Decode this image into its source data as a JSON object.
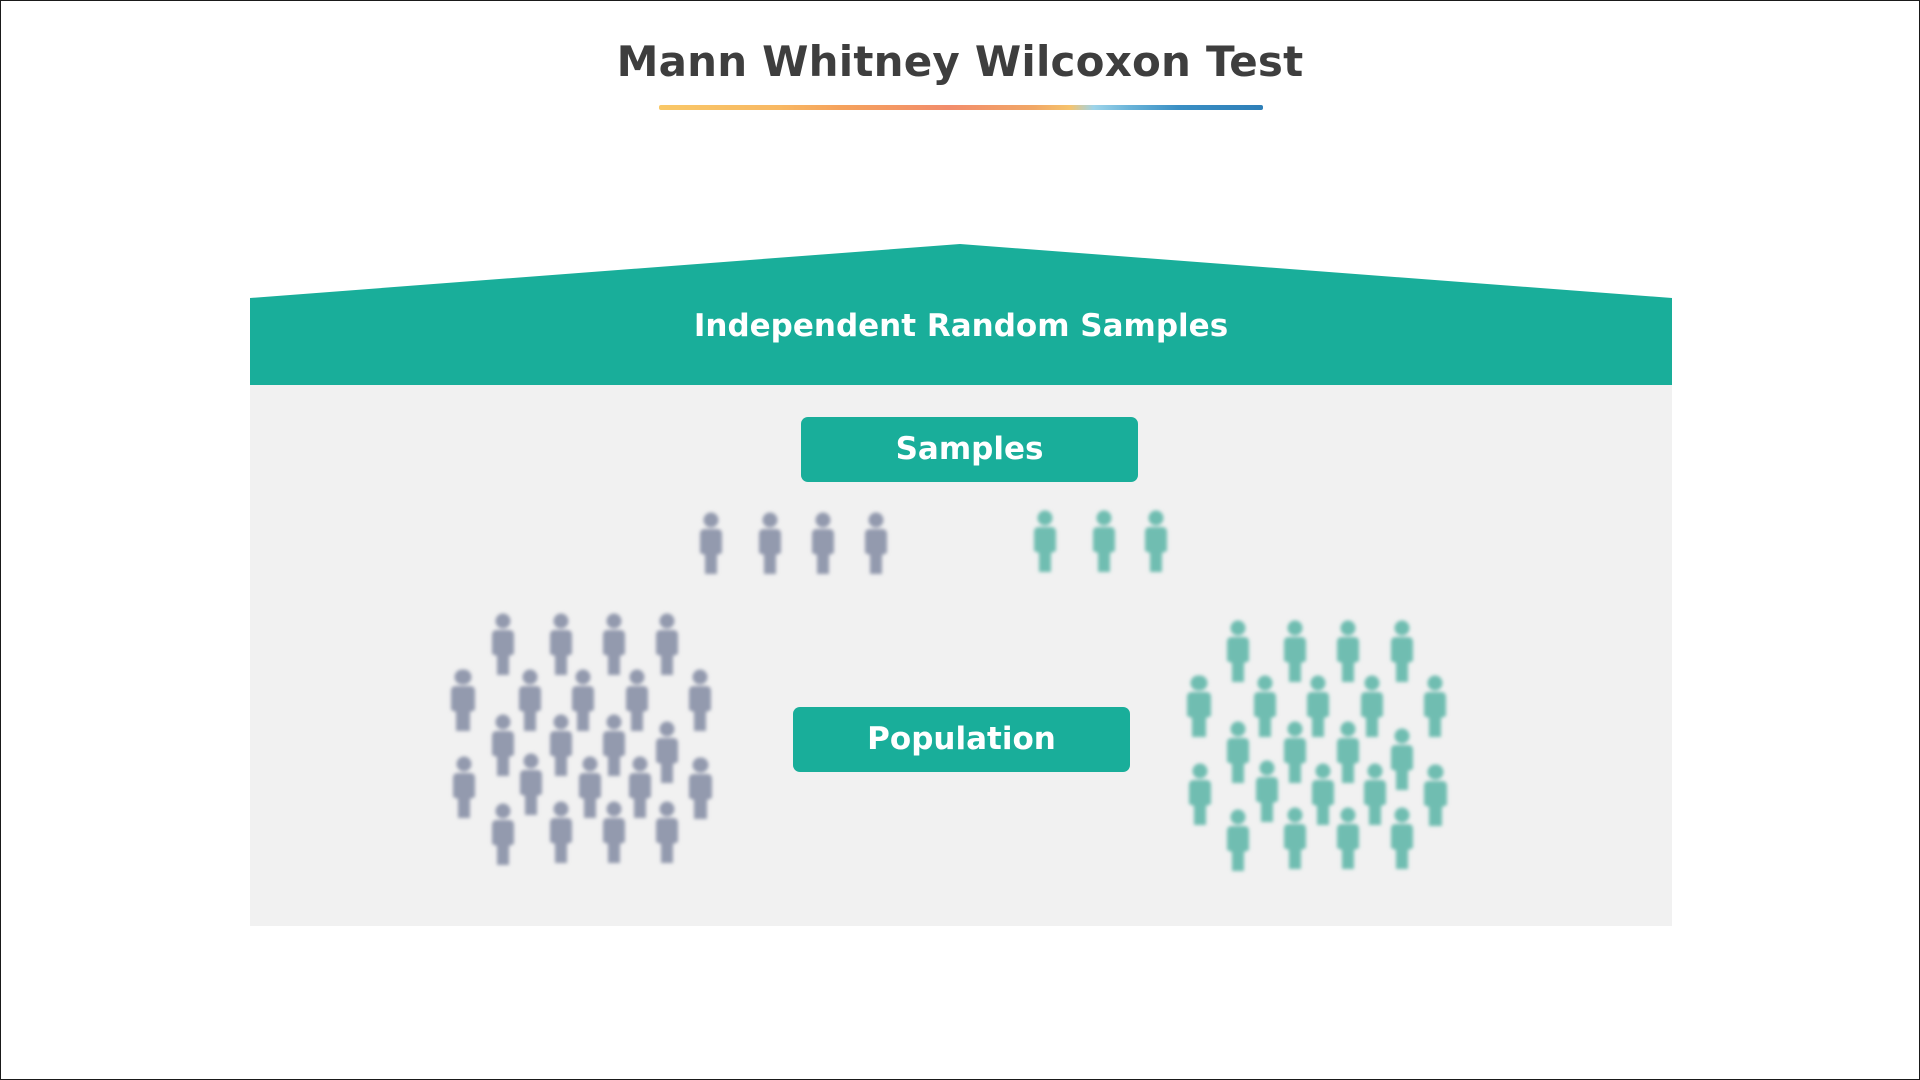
{
  "title": "Mann Whitney Wilcoxon Test",
  "header_band": {
    "label": "Independent Random Samples",
    "color": "#19ae9a"
  },
  "samples_label": "Samples",
  "population_label": "Population",
  "colors": {
    "group_a": "#939aae",
    "group_b": "#6fbdb1",
    "panel": "#f1f1f1",
    "title_text": "#3e3e3e"
  },
  "groups": [
    {
      "name": "group_a",
      "icon": "person-icon",
      "sample_count": 4,
      "population_count": 24
    },
    {
      "name": "group_b",
      "icon": "person-icon",
      "sample_count": 3,
      "population_count": 24
    }
  ]
}
